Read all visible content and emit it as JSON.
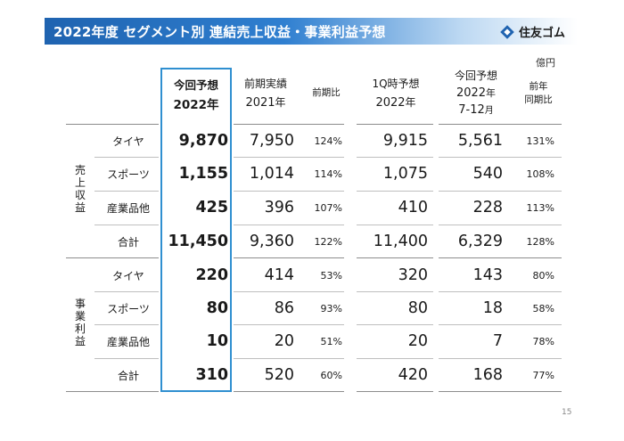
{
  "title": "2022年度 セグメント別 連結売上収益・事業利益予想",
  "logo": {
    "text": "住友ゴム",
    "icon": "sumitomo-rubber-logo-icon",
    "color": "#1f63b0"
  },
  "unit": "億円",
  "headers": {
    "forecast_current": [
      "今回予想",
      "2022年"
    ],
    "prior_actual": [
      "前期実績",
      "2021",
      "年"
    ],
    "yoy": "前期比",
    "q1_forecast": [
      "1Q時予想",
      "2022",
      "年"
    ],
    "h2_forecast": [
      "今回予想",
      "2022",
      "年",
      "7-12",
      "月"
    ],
    "h2_yoy": [
      "前年",
      "同期比"
    ]
  },
  "sections": [
    {
      "label": "売上収益",
      "rows": [
        {
          "name": "タイヤ",
          "forecast": "9,870",
          "prior": "7,950",
          "yoy": "124%",
          "q1": "9,915",
          "h2": "5,561",
          "h2_yoy": "131%"
        },
        {
          "name": "スポーツ",
          "forecast": "1,155",
          "prior": "1,014",
          "yoy": "114%",
          "q1": "1,075",
          "h2": "540",
          "h2_yoy": "108%"
        },
        {
          "name": "産業品他",
          "forecast": "425",
          "prior": "396",
          "yoy": "107%",
          "q1": "410",
          "h2": "228",
          "h2_yoy": "113%"
        },
        {
          "name": "合計",
          "forecast": "11,450",
          "prior": "9,360",
          "yoy": "122%",
          "q1": "11,400",
          "h2": "6,329",
          "h2_yoy": "128%"
        }
      ]
    },
    {
      "label": "事業利益",
      "rows": [
        {
          "name": "タイヤ",
          "forecast": "220",
          "prior": "414",
          "yoy": "53%",
          "q1": "320",
          "h2": "143",
          "h2_yoy": "80%"
        },
        {
          "name": "スポーツ",
          "forecast": "80",
          "prior": "86",
          "yoy": "93%",
          "q1": "80",
          "h2": "18",
          "h2_yoy": "58%"
        },
        {
          "name": "産業品他",
          "forecast": "10",
          "prior": "20",
          "yoy": "51%",
          "q1": "20",
          "h2": "7",
          "h2_yoy": "78%"
        },
        {
          "name": "合計",
          "forecast": "310",
          "prior": "520",
          "yoy": "60%",
          "q1": "420",
          "h2": "168",
          "h2_yoy": "77%"
        }
      ]
    }
  ],
  "page_number": "15",
  "colors": {
    "accent": "#2f8fd0",
    "title_bar": "#1f63b0"
  }
}
